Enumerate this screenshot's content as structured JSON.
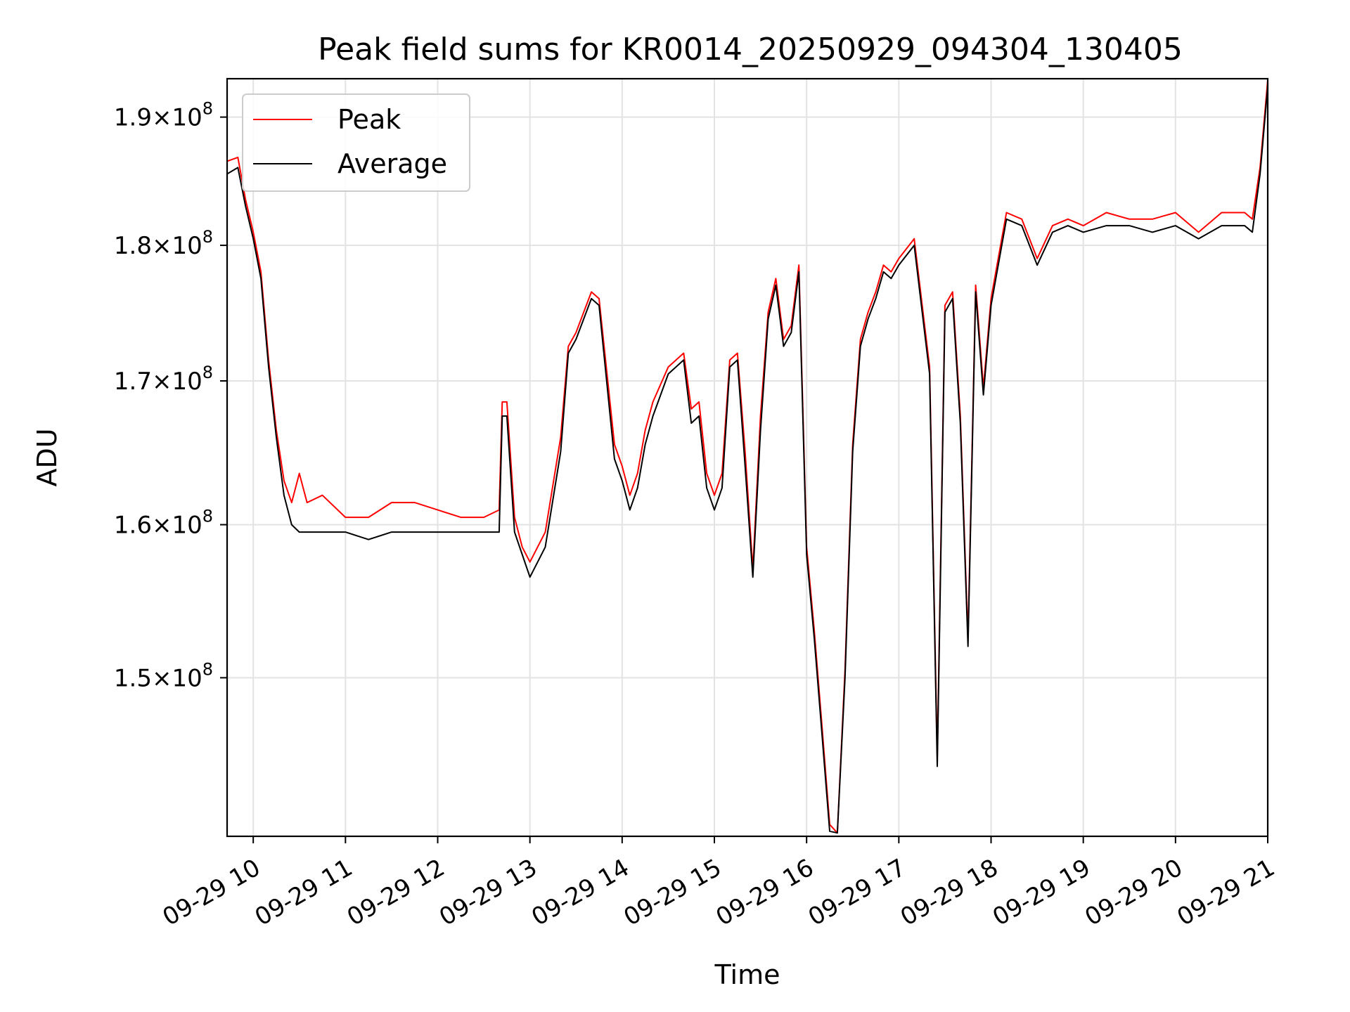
{
  "chart_data": {
    "type": "line",
    "title": "Peak field sums for KR0014_20250929_094304_130405",
    "xlabel": "Time",
    "ylabel": "ADU",
    "x_ticks": [
      "09-29 10",
      "09-29 11",
      "09-29 12",
      "09-29 13",
      "09-29 14",
      "09-29 15",
      "09-29 16",
      "09-29 17",
      "09-29 18",
      "09-29 19",
      "09-29 20",
      "09-29 21"
    ],
    "y_ticks": [
      {
        "value": 150000000,
        "mantissa": "1.5",
        "exp": "8"
      },
      {
        "value": 160000000,
        "mantissa": "1.6",
        "exp": "8"
      },
      {
        "value": 170000000,
        "mantissa": "1.7",
        "exp": "8"
      },
      {
        "value": 180000000,
        "mantissa": "1.8",
        "exp": "8"
      },
      {
        "value": 190000000,
        "mantissa": "1.9",
        "exp": "8"
      }
    ],
    "xlim": [
      "2025-09-29 09:43",
      "2025-09-29 21:00"
    ],
    "ylim": [
      140300000,
      193100000
    ],
    "y_scale": "log",
    "grid": true,
    "legend_position": "top-left",
    "series": [
      {
        "name": "Peak",
        "color": "#ff0000",
        "x": [
          "2025-09-29 09:43",
          "2025-09-29 09:50",
          "2025-09-29 09:55",
          "2025-09-29 10:00",
          "2025-09-29 10:05",
          "2025-09-29 10:10",
          "2025-09-29 10:15",
          "2025-09-29 10:20",
          "2025-09-29 10:25",
          "2025-09-29 10:30",
          "2025-09-29 10:35",
          "2025-09-29 10:45",
          "2025-09-29 11:00",
          "2025-09-29 11:15",
          "2025-09-29 11:30",
          "2025-09-29 11:45",
          "2025-09-29 12:00",
          "2025-09-29 12:15",
          "2025-09-29 12:30",
          "2025-09-29 12:40",
          "2025-09-29 12:42",
          "2025-09-29 12:45",
          "2025-09-29 12:50",
          "2025-09-29 12:55",
          "2025-09-29 13:00",
          "2025-09-29 13:10",
          "2025-09-29 13:20",
          "2025-09-29 13:25",
          "2025-09-29 13:30",
          "2025-09-29 13:40",
          "2025-09-29 13:45",
          "2025-09-29 13:55",
          "2025-09-29 14:00",
          "2025-09-29 14:05",
          "2025-09-29 14:10",
          "2025-09-29 14:15",
          "2025-09-29 14:20",
          "2025-09-29 14:30",
          "2025-09-29 14:40",
          "2025-09-29 14:45",
          "2025-09-29 14:50",
          "2025-09-29 14:55",
          "2025-09-29 15:00",
          "2025-09-29 15:05",
          "2025-09-29 15:10",
          "2025-09-29 15:15",
          "2025-09-29 15:20",
          "2025-09-29 15:25",
          "2025-09-29 15:30",
          "2025-09-29 15:35",
          "2025-09-29 15:40",
          "2025-09-29 15:45",
          "2025-09-29 15:50",
          "2025-09-29 15:55",
          "2025-09-29 16:00",
          "2025-09-29 16:05",
          "2025-09-29 16:10",
          "2025-09-29 16:15",
          "2025-09-29 16:20",
          "2025-09-29 16:25",
          "2025-09-29 16:30",
          "2025-09-29 16:35",
          "2025-09-29 16:40",
          "2025-09-29 16:45",
          "2025-09-29 16:50",
          "2025-09-29 16:55",
          "2025-09-29 17:00",
          "2025-09-29 17:10",
          "2025-09-29 17:20",
          "2025-09-29 17:25",
          "2025-09-29 17:30",
          "2025-09-29 17:35",
          "2025-09-29 17:40",
          "2025-09-29 17:45",
          "2025-09-29 17:50",
          "2025-09-29 17:55",
          "2025-09-29 18:00",
          "2025-09-29 18:10",
          "2025-09-29 18:20",
          "2025-09-29 18:30",
          "2025-09-29 18:40",
          "2025-09-29 18:50",
          "2025-09-29 19:00",
          "2025-09-29 19:15",
          "2025-09-29 19:30",
          "2025-09-29 19:45",
          "2025-09-29 20:00",
          "2025-09-29 20:15",
          "2025-09-29 20:30",
          "2025-09-29 20:45",
          "2025-09-29 20:50",
          "2025-09-29 20:55",
          "2025-09-29 21:00"
        ],
        "y": [
          186500000,
          186800000,
          183500000,
          181000000,
          178000000,
          171500000,
          166500000,
          163000000,
          161500000,
          163500000,
          161500000,
          162000000,
          160500000,
          160500000,
          161500000,
          161500000,
          161000000,
          160500000,
          160500000,
          161000000,
          168500000,
          168500000,
          160500000,
          158500000,
          157500000,
          159500000,
          166000000,
          172500000,
          173500000,
          176500000,
          176000000,
          165500000,
          164000000,
          162000000,
          163500000,
          166500000,
          168500000,
          171000000,
          172000000,
          168000000,
          168500000,
          163500000,
          162000000,
          163500000,
          171500000,
          172000000,
          165000000,
          157000000,
          167500000,
          175000000,
          177500000,
          173000000,
          174000000,
          178500000,
          158500000,
          153000000,
          147000000,
          141000000,
          140500000,
          150500000,
          165500000,
          173000000,
          175000000,
          176500000,
          178500000,
          178000000,
          179000000,
          180500000,
          171000000,
          145000000,
          175500000,
          176500000,
          167500000,
          152500000,
          177000000,
          169500000,
          176000000,
          182500000,
          182000000,
          179000000,
          181500000,
          182000000,
          181500000,
          182500000,
          182000000,
          182000000,
          182500000,
          181000000,
          182500000,
          182500000,
          182000000,
          186000000,
          193000000
        ]
      },
      {
        "name": "Average",
        "color": "#000000",
        "x": [
          "2025-09-29 09:43",
          "2025-09-29 09:50",
          "2025-09-29 09:55",
          "2025-09-29 10:00",
          "2025-09-29 10:05",
          "2025-09-29 10:10",
          "2025-09-29 10:15",
          "2025-09-29 10:20",
          "2025-09-29 10:25",
          "2025-09-29 10:30",
          "2025-09-29 10:35",
          "2025-09-29 10:45",
          "2025-09-29 11:00",
          "2025-09-29 11:15",
          "2025-09-29 11:30",
          "2025-09-29 11:45",
          "2025-09-29 12:00",
          "2025-09-29 12:15",
          "2025-09-29 12:30",
          "2025-09-29 12:40",
          "2025-09-29 12:42",
          "2025-09-29 12:45",
          "2025-09-29 12:50",
          "2025-09-29 12:55",
          "2025-09-29 13:00",
          "2025-09-29 13:10",
          "2025-09-29 13:20",
          "2025-09-29 13:25",
          "2025-09-29 13:30",
          "2025-09-29 13:40",
          "2025-09-29 13:45",
          "2025-09-29 13:55",
          "2025-09-29 14:00",
          "2025-09-29 14:05",
          "2025-09-29 14:10",
          "2025-09-29 14:15",
          "2025-09-29 14:20",
          "2025-09-29 14:30",
          "2025-09-29 14:40",
          "2025-09-29 14:45",
          "2025-09-29 14:50",
          "2025-09-29 14:55",
          "2025-09-29 15:00",
          "2025-09-29 15:05",
          "2025-09-29 15:10",
          "2025-09-29 15:15",
          "2025-09-29 15:20",
          "2025-09-29 15:25",
          "2025-09-29 15:30",
          "2025-09-29 15:35",
          "2025-09-29 15:40",
          "2025-09-29 15:45",
          "2025-09-29 15:50",
          "2025-09-29 15:55",
          "2025-09-29 16:00",
          "2025-09-29 16:05",
          "2025-09-29 16:10",
          "2025-09-29 16:15",
          "2025-09-29 16:20",
          "2025-09-29 16:25",
          "2025-09-29 16:30",
          "2025-09-29 16:35",
          "2025-09-29 16:40",
          "2025-09-29 16:45",
          "2025-09-29 16:50",
          "2025-09-29 16:55",
          "2025-09-29 17:00",
          "2025-09-29 17:10",
          "2025-09-29 17:20",
          "2025-09-29 17:25",
          "2025-09-29 17:30",
          "2025-09-29 17:35",
          "2025-09-29 17:40",
          "2025-09-29 17:45",
          "2025-09-29 17:50",
          "2025-09-29 17:55",
          "2025-09-29 18:00",
          "2025-09-29 18:10",
          "2025-09-29 18:20",
          "2025-09-29 18:30",
          "2025-09-29 18:40",
          "2025-09-29 18:50",
          "2025-09-29 19:00",
          "2025-09-29 19:15",
          "2025-09-29 19:30",
          "2025-09-29 19:45",
          "2025-09-29 20:00",
          "2025-09-29 20:15",
          "2025-09-29 20:30",
          "2025-09-29 20:45",
          "2025-09-29 20:50",
          "2025-09-29 20:55",
          "2025-09-29 21:00"
        ],
        "y": [
          185500000,
          186000000,
          183000000,
          180500000,
          177500000,
          171000000,
          166000000,
          162000000,
          160000000,
          159500000,
          159500000,
          159500000,
          159500000,
          159000000,
          159500000,
          159500000,
          159500000,
          159500000,
          159500000,
          159500000,
          167500000,
          167500000,
          159500000,
          158000000,
          156500000,
          158500000,
          165000000,
          172000000,
          173000000,
          176000000,
          175500000,
          164500000,
          163000000,
          161000000,
          162500000,
          165500000,
          167500000,
          170500000,
          171500000,
          167000000,
          167500000,
          162500000,
          161000000,
          162500000,
          171000000,
          171500000,
          164000000,
          156500000,
          166500000,
          174500000,
          177000000,
          172500000,
          173500000,
          178000000,
          158000000,
          152500000,
          146500000,
          140600000,
          140500000,
          150000000,
          165000000,
          172500000,
          174500000,
          176000000,
          178000000,
          177500000,
          178500000,
          180000000,
          170500000,
          144500000,
          175000000,
          176000000,
          167000000,
          152000000,
          176500000,
          169000000,
          175500000,
          182000000,
          181500000,
          178500000,
          181000000,
          181500000,
          181000000,
          181500000,
          181500000,
          181000000,
          181500000,
          180500000,
          181500000,
          181500000,
          181000000,
          185500000,
          192500000
        ]
      }
    ]
  }
}
